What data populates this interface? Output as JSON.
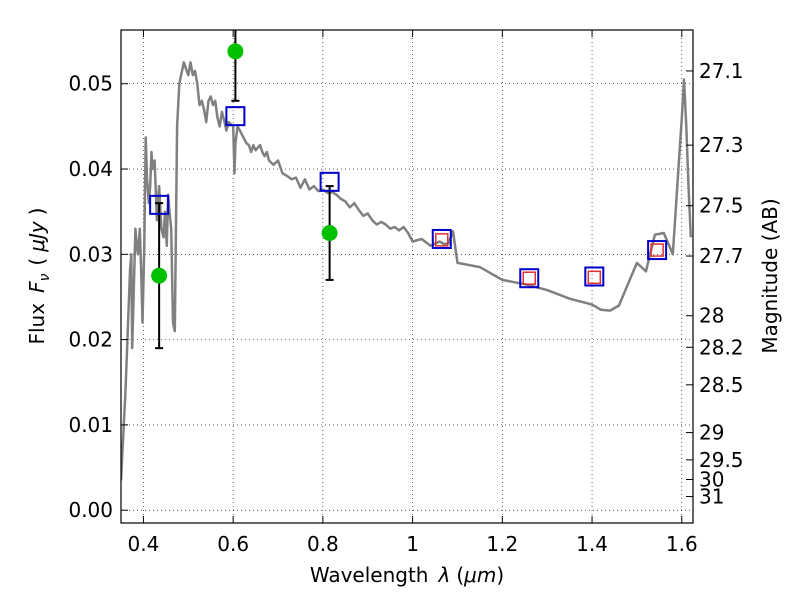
{
  "chart_data": {
    "type": "line",
    "title": "",
    "xlabel": "Wavelength",
    "xlabel_symbol": "λ",
    "xlabel_unit_open": "(",
    "xlabel_unit": "μm",
    "xlabel_unit_close": ")",
    "ylabel": "Flux",
    "ylabel_symbol": "F",
    "ylabel_subscript": "ν",
    "ylabel_unit_open": "(",
    "ylabel_unit": "μJy",
    "ylabel_unit_close": ")",
    "ylabel_right": "Magnitude (AB)",
    "xlim": [
      0.35,
      1.625
    ],
    "ylim": [
      -0.0015,
      0.0563
    ],
    "grid": true,
    "x_ticks": [
      0.4,
      0.6,
      0.8,
      1.0,
      1.2,
      1.4,
      1.6
    ],
    "x_tick_labels": [
      "0.4",
      "0.6",
      "0.8",
      "1",
      "1.2",
      "1.4",
      "1.6"
    ],
    "y_ticks": [
      0.0,
      0.01,
      0.02,
      0.03,
      0.04,
      0.05
    ],
    "y_tick_labels": [
      "0.00",
      "0.01",
      "0.02",
      "0.03",
      "0.04",
      "0.05"
    ],
    "right_ticks": [
      {
        "label": "27.1",
        "flux": 0.0515
      },
      {
        "label": "27.3",
        "flux": 0.0428
      },
      {
        "label": "27.5",
        "flux": 0.0357
      },
      {
        "label": "27.7",
        "flux": 0.0298
      },
      {
        "label": "28",
        "flux": 0.0228
      },
      {
        "label": "28.2",
        "flux": 0.0191
      },
      {
        "label": "28.5",
        "flux": 0.0147
      },
      {
        "label": "29",
        "flux": 0.0091
      },
      {
        "label": "29.5",
        "flux": 0.0059
      },
      {
        "label": "30",
        "flux": 0.0036
      },
      {
        "label": "31",
        "flux": 0.0016
      }
    ],
    "series": [
      {
        "kind": "line",
        "color": "#808080",
        "x": [
          0.35,
          0.36,
          0.37,
          0.373,
          0.375,
          0.378,
          0.382,
          0.385,
          0.388,
          0.392,
          0.395,
          0.398,
          0.402,
          0.405,
          0.408,
          0.412,
          0.415,
          0.418,
          0.42,
          0.425,
          0.43,
          0.435,
          0.44,
          0.445,
          0.448,
          0.452,
          0.455,
          0.458,
          0.462,
          0.466,
          0.47,
          0.475,
          0.48,
          0.49,
          0.5,
          0.505,
          0.51,
          0.515,
          0.52,
          0.525,
          0.53,
          0.535,
          0.54,
          0.545,
          0.55,
          0.555,
          0.56,
          0.565,
          0.57,
          0.575,
          0.58,
          0.585,
          0.59,
          0.6,
          0.603,
          0.605,
          0.61,
          0.615,
          0.62,
          0.625,
          0.63,
          0.635,
          0.64,
          0.645,
          0.65,
          0.655,
          0.66,
          0.665,
          0.67,
          0.675,
          0.68,
          0.69,
          0.7,
          0.71,
          0.72,
          0.73,
          0.74,
          0.75,
          0.76,
          0.77,
          0.78,
          0.79,
          0.8,
          0.81,
          0.82,
          0.83,
          0.84,
          0.85,
          0.86,
          0.87,
          0.88,
          0.89,
          0.9,
          0.91,
          0.92,
          0.93,
          0.94,
          0.95,
          0.96,
          0.97,
          0.98,
          0.99,
          1.0,
          1.02,
          1.04,
          1.06,
          1.07,
          1.08,
          1.09,
          1.1,
          1.15,
          1.2,
          1.25,
          1.3,
          1.35,
          1.4,
          1.42,
          1.44,
          1.46,
          1.48,
          1.5,
          1.52,
          1.54,
          1.56,
          1.58,
          1.6,
          1.605,
          1.61,
          1.615,
          1.62
        ],
        "y": [
          0.0035,
          0.014,
          0.028,
          0.03,
          0.019,
          0.025,
          0.033,
          0.031,
          0.03,
          0.033,
          0.028,
          0.022,
          0.031,
          0.0437,
          0.039,
          0.036,
          0.038,
          0.042,
          0.04,
          0.041,
          0.034,
          0.038,
          0.033,
          0.032,
          0.035,
          0.031,
          0.037,
          0.035,
          0.033,
          0.022,
          0.021,
          0.045,
          0.05,
          0.0525,
          0.051,
          0.0525,
          0.051,
          0.0515,
          0.05,
          0.0475,
          0.048,
          0.047,
          0.0455,
          0.048,
          0.0485,
          0.0475,
          0.048,
          0.046,
          0.045,
          0.0467,
          0.0457,
          0.0445,
          0.0455,
          0.045,
          0.0395,
          0.043,
          0.045,
          0.0445,
          0.044,
          0.0435,
          0.043,
          0.0428,
          0.042,
          0.0428,
          0.0422,
          0.0425,
          0.0428,
          0.042,
          0.0415,
          0.042,
          0.041,
          0.0405,
          0.041,
          0.0395,
          0.0392,
          0.0388,
          0.039,
          0.0378,
          0.0388,
          0.0376,
          0.038,
          0.0374,
          0.0376,
          0.0372,
          0.0373,
          0.037,
          0.0365,
          0.0362,
          0.0355,
          0.036,
          0.0352,
          0.0345,
          0.0348,
          0.034,
          0.0335,
          0.0338,
          0.0335,
          0.033,
          0.0332,
          0.0328,
          0.0332,
          0.0325,
          0.0315,
          0.0318,
          0.031,
          0.0315,
          0.0312,
          0.0313,
          0.0327,
          0.029,
          0.0285,
          0.027,
          0.0265,
          0.0258,
          0.0248,
          0.0241,
          0.0235,
          0.0234,
          0.024,
          0.0265,
          0.029,
          0.028,
          0.0323,
          0.0325,
          0.03,
          0.046,
          0.0505,
          0.045,
          0.038,
          0.032
        ]
      },
      {
        "kind": "points",
        "marker": "circle",
        "color": "#00c000",
        "x": [
          0.435,
          0.605,
          0.815
        ],
        "y": [
          0.0275,
          0.0538,
          0.0325
        ],
        "err_low": [
          0.0085,
          0.0058,
          0.0055
        ],
        "err_high": [
          0.0085,
          0.0058,
          0.0055
        ]
      },
      {
        "kind": "points",
        "marker": "open-square-small",
        "color": "#e03030",
        "x": [
          1.065,
          1.26,
          1.405,
          1.545
        ],
        "y": [
          0.0317,
          0.0272,
          0.0273,
          0.0305
        ]
      },
      {
        "kind": "points",
        "marker": "open-square",
        "color": "#0000cc",
        "x": [
          0.435,
          0.605,
          0.815,
          1.065,
          1.26,
          1.405,
          1.545
        ],
        "y": [
          0.0358,
          0.0462,
          0.0385,
          0.0318,
          0.0272,
          0.0274,
          0.0305
        ]
      }
    ]
  }
}
